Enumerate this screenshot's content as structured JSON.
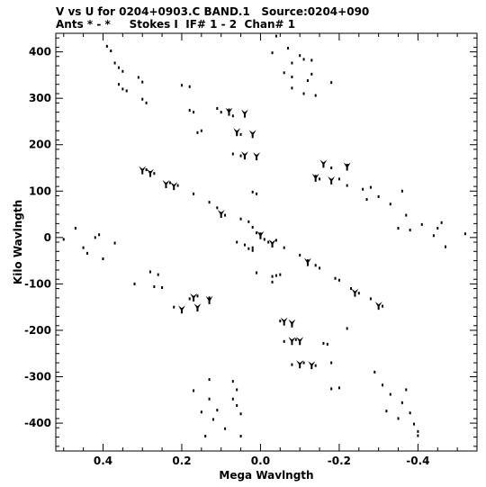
{
  "header": {
    "line1": "V vs U for 0204+0903.C BAND.1   Source:0204+090",
    "line2": "Ants * - *     Stokes I  IF# 1 - 2  Chan# 1"
  },
  "chart_data": {
    "type": "scatter",
    "title": "V vs U for 0204+0903.C BAND.1   Source:0204+090",
    "subtitle": "Ants * - *     Stokes I  IF# 1 - 2  Chan# 1",
    "xlabel": "Mega Wavlngth",
    "ylabel": "Kilo Wavlngth",
    "xlim": [
      0.52,
      -0.55
    ],
    "ylim": [
      -460,
      440
    ],
    "x_ticks": [
      0.4,
      0.2,
      0.0,
      -0.2,
      -0.4
    ],
    "x_tick_labels": [
      "0.4",
      "0.2",
      "0.0",
      "-0.2",
      "-0.4"
    ],
    "y_ticks": [
      400,
      300,
      200,
      100,
      0,
      -100,
      -200,
      -300,
      -400
    ],
    "y_tick_labels": [
      "400",
      "300",
      "200",
      "100",
      "0",
      "-100",
      "-200",
      "-300",
      "-400"
    ],
    "grid": false,
    "legend": "none",
    "point_color": "#000000",
    "points": [
      [
        0.39,
        412
      ],
      [
        0.38,
        402
      ],
      [
        0.37,
        376
      ],
      [
        0.36,
        366
      ],
      [
        0.35,
        358
      ],
      [
        0.36,
        330
      ],
      [
        0.35,
        320
      ],
      [
        0.34,
        316
      ],
      [
        0.31,
        345
      ],
      [
        0.3,
        335
      ],
      [
        0.3,
        298
      ],
      [
        0.29,
        290
      ],
      [
        0.2,
        328
      ],
      [
        0.18,
        325
      ],
      [
        0.18,
        274
      ],
      [
        0.17,
        270
      ],
      [
        0.15,
        230
      ],
      [
        0.16,
        226
      ],
      [
        0.11,
        278
      ],
      [
        0.1,
        270
      ],
      [
        0.08,
        275
      ],
      [
        0.07,
        262
      ],
      [
        0.06,
        226
      ],
      [
        0.05,
        222
      ],
      [
        0.07,
        180
      ],
      [
        0.05,
        176
      ],
      [
        0.04,
        174
      ],
      [
        -0.04,
        434
      ],
      [
        -0.03,
        398
      ],
      [
        -0.07,
        408
      ],
      [
        -0.1,
        392
      ],
      [
        -0.11,
        384
      ],
      [
        -0.13,
        382
      ],
      [
        -0.08,
        376
      ],
      [
        -0.06,
        355
      ],
      [
        -0.08,
        346
      ],
      [
        -0.13,
        352
      ],
      [
        -0.12,
        338
      ],
      [
        -0.08,
        322
      ],
      [
        -0.11,
        310
      ],
      [
        -0.14,
        306
      ],
      [
        -0.18,
        334
      ],
      [
        -0.16,
        158
      ],
      [
        -0.18,
        150
      ],
      [
        -0.22,
        156
      ],
      [
        -0.14,
        132
      ],
      [
        -0.15,
        126
      ],
      [
        -0.2,
        126
      ],
      [
        -0.22,
        112
      ],
      [
        -0.28,
        108
      ],
      [
        -0.26,
        104
      ],
      [
        -0.27,
        82
      ],
      [
        -0.3,
        88
      ],
      [
        -0.33,
        72
      ],
      [
        -0.36,
        100
      ],
      [
        0.29,
        146
      ],
      [
        0.28,
        140
      ],
      [
        0.27,
        138
      ],
      [
        0.23,
        118
      ],
      [
        0.21,
        112
      ],
      [
        0.17,
        94
      ],
      [
        0.13,
        76
      ],
      [
        0.11,
        64
      ],
      [
        0.1,
        52
      ],
      [
        0.09,
        48
      ],
      [
        0.05,
        40
      ],
      [
        0.03,
        34
      ],
      [
        0.02,
        22
      ],
      [
        0.01,
        10
      ],
      [
        0.0,
        8
      ],
      [
        0.0,
        0
      ],
      [
        -0.01,
        -4
      ],
      [
        -0.02,
        -10
      ],
      [
        -0.03,
        -14
      ],
      [
        -0.06,
        -22
      ],
      [
        -0.1,
        -38
      ],
      [
        -0.12,
        -50
      ],
      [
        -0.14,
        -60
      ],
      [
        -0.15,
        -66
      ],
      [
        -0.19,
        -88
      ],
      [
        -0.2,
        -92
      ],
      [
        -0.23,
        -110
      ],
      [
        -0.25,
        -120
      ],
      [
        -0.28,
        -132
      ],
      [
        -0.31,
        -148
      ],
      [
        0.03,
        -24
      ],
      [
        0.02,
        -28
      ],
      [
        -0.04,
        -6
      ],
      [
        0.06,
        -10
      ],
      [
        0.04,
        -16
      ],
      [
        0.02,
        -22
      ],
      [
        0.02,
        98
      ],
      [
        0.01,
        94
      ],
      [
        0.01,
        -76
      ],
      [
        -0.03,
        -96
      ],
      [
        -0.04,
        -82
      ],
      [
        -0.03,
        -84
      ],
      [
        -0.05,
        -80
      ],
      [
        0.5,
        -4
      ],
      [
        0.47,
        20
      ],
      [
        0.45,
        -22
      ],
      [
        0.44,
        -34
      ],
      [
        0.42,
        0
      ],
      [
        0.41,
        6
      ],
      [
        0.4,
        -46
      ],
      [
        0.37,
        -12
      ],
      [
        0.32,
        -100
      ],
      [
        0.28,
        -74
      ],
      [
        0.26,
        -80
      ],
      [
        0.27,
        -106
      ],
      [
        0.25,
        -108
      ],
      [
        0.22,
        -150
      ],
      [
        0.18,
        -132
      ],
      [
        0.16,
        -126
      ],
      [
        0.16,
        -156
      ],
      [
        0.13,
        -130
      ],
      [
        -0.35,
        20
      ],
      [
        -0.37,
        48
      ],
      [
        -0.38,
        16
      ],
      [
        -0.41,
        28
      ],
      [
        -0.44,
        4
      ],
      [
        -0.46,
        32
      ],
      [
        -0.45,
        20
      ],
      [
        -0.47,
        -20
      ],
      [
        -0.52,
        8
      ],
      [
        -0.05,
        -180
      ],
      [
        -0.08,
        -188
      ],
      [
        -0.06,
        -224
      ],
      [
        -0.09,
        -220
      ],
      [
        -0.08,
        -274
      ],
      [
        -0.11,
        -270
      ],
      [
        -0.14,
        -276
      ],
      [
        -0.16,
        -228
      ],
      [
        -0.17,
        -230
      ],
      [
        -0.18,
        -270
      ],
      [
        -0.18,
        -326
      ],
      [
        -0.2,
        -324
      ],
      [
        -0.22,
        -196
      ],
      [
        -0.29,
        -290
      ],
      [
        -0.31,
        -318
      ],
      [
        -0.33,
        -338
      ],
      [
        -0.32,
        -374
      ],
      [
        -0.35,
        -390
      ],
      [
        -0.36,
        -356
      ],
      [
        -0.37,
        -328
      ],
      [
        -0.38,
        -378
      ],
      [
        -0.39,
        -402
      ],
      [
        -0.4,
        -418
      ],
      [
        -0.4,
        -427
      ],
      [
        0.17,
        -330
      ],
      [
        0.13,
        -306
      ],
      [
        0.13,
        -348
      ],
      [
        0.12,
        -392
      ],
      [
        0.11,
        -372
      ],
      [
        0.09,
        -412
      ],
      [
        0.07,
        -348
      ],
      [
        0.06,
        -328
      ],
      [
        0.06,
        -362
      ],
      [
        0.05,
        -380
      ],
      [
        0.07,
        -310
      ],
      [
        0.05,
        -428
      ],
      [
        0.15,
        -376
      ],
      [
        0.14,
        -428
      ]
    ],
    "blob_points": [
      [
        0.3,
        146
      ],
      [
        0.24,
        116
      ],
      [
        0.1,
        52
      ],
      [
        0.0,
        6
      ],
      [
        -0.03,
        -12
      ],
      [
        -0.12,
        -52
      ],
      [
        -0.24,
        -118
      ],
      [
        -0.3,
        -146
      ],
      [
        0.28,
        140
      ],
      [
        0.22,
        112
      ],
      [
        0.08,
        272
      ],
      [
        0.04,
        268
      ],
      [
        0.06,
        228
      ],
      [
        0.02,
        224
      ],
      [
        0.04,
        178
      ],
      [
        0.01,
        176
      ],
      [
        -0.16,
        160
      ],
      [
        -0.22,
        154
      ],
      [
        -0.14,
        130
      ],
      [
        -0.18,
        124
      ],
      [
        0.2,
        -154
      ],
      [
        0.17,
        -128
      ],
      [
        0.13,
        -134
      ],
      [
        0.16,
        -150
      ],
      [
        -0.06,
        -180
      ],
      [
        -0.08,
        -222
      ],
      [
        -0.1,
        -272
      ],
      [
        -0.13,
        -274
      ],
      [
        -0.1,
        -222
      ],
      [
        -0.08,
        -184
      ]
    ]
  }
}
